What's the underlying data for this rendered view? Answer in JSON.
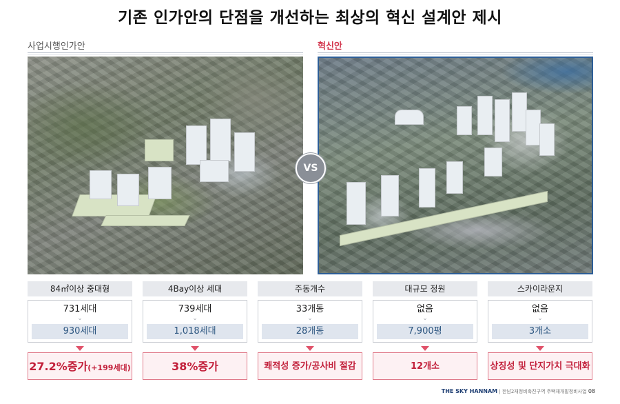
{
  "title": "기존 인가안의 단점을 개선하는 최상의 혁신 설계안 제시",
  "left_section": {
    "label": "사업시행인가안"
  },
  "right_section": {
    "label": "혁신안"
  },
  "vs_label": "VS",
  "comparisons": [
    {
      "header": "84㎡이상 중대형",
      "before": "731세대",
      "after": "930세대",
      "result_main": "27.2%증가",
      "result_note": "(+199세대)"
    },
    {
      "header": "4Bay이상 세대",
      "before": "739세대",
      "after": "1,018세대",
      "result_main": "38%증가",
      "result_note": ""
    },
    {
      "header": "주동개수",
      "before": "33개동",
      "after": "28개동",
      "result_main": "쾌적성 증가/공사비 절감",
      "result_note": ""
    },
    {
      "header": "대규모 정원",
      "before": "없음",
      "after": "7,900평",
      "result_main": "12개소",
      "result_note": ""
    },
    {
      "header": "스카이라운지",
      "before": "없음",
      "after": "3개소",
      "result_main": "상징성 및 단지가치 극대화",
      "result_note": ""
    }
  ],
  "footer": {
    "brand": "THE SKY HANNAM",
    "text": "한남2재정비촉진구역 주택재개발정비사업",
    "page": "08"
  },
  "colors": {
    "accent_red": "#d2354c",
    "accent_blue": "#2d5e97"
  }
}
